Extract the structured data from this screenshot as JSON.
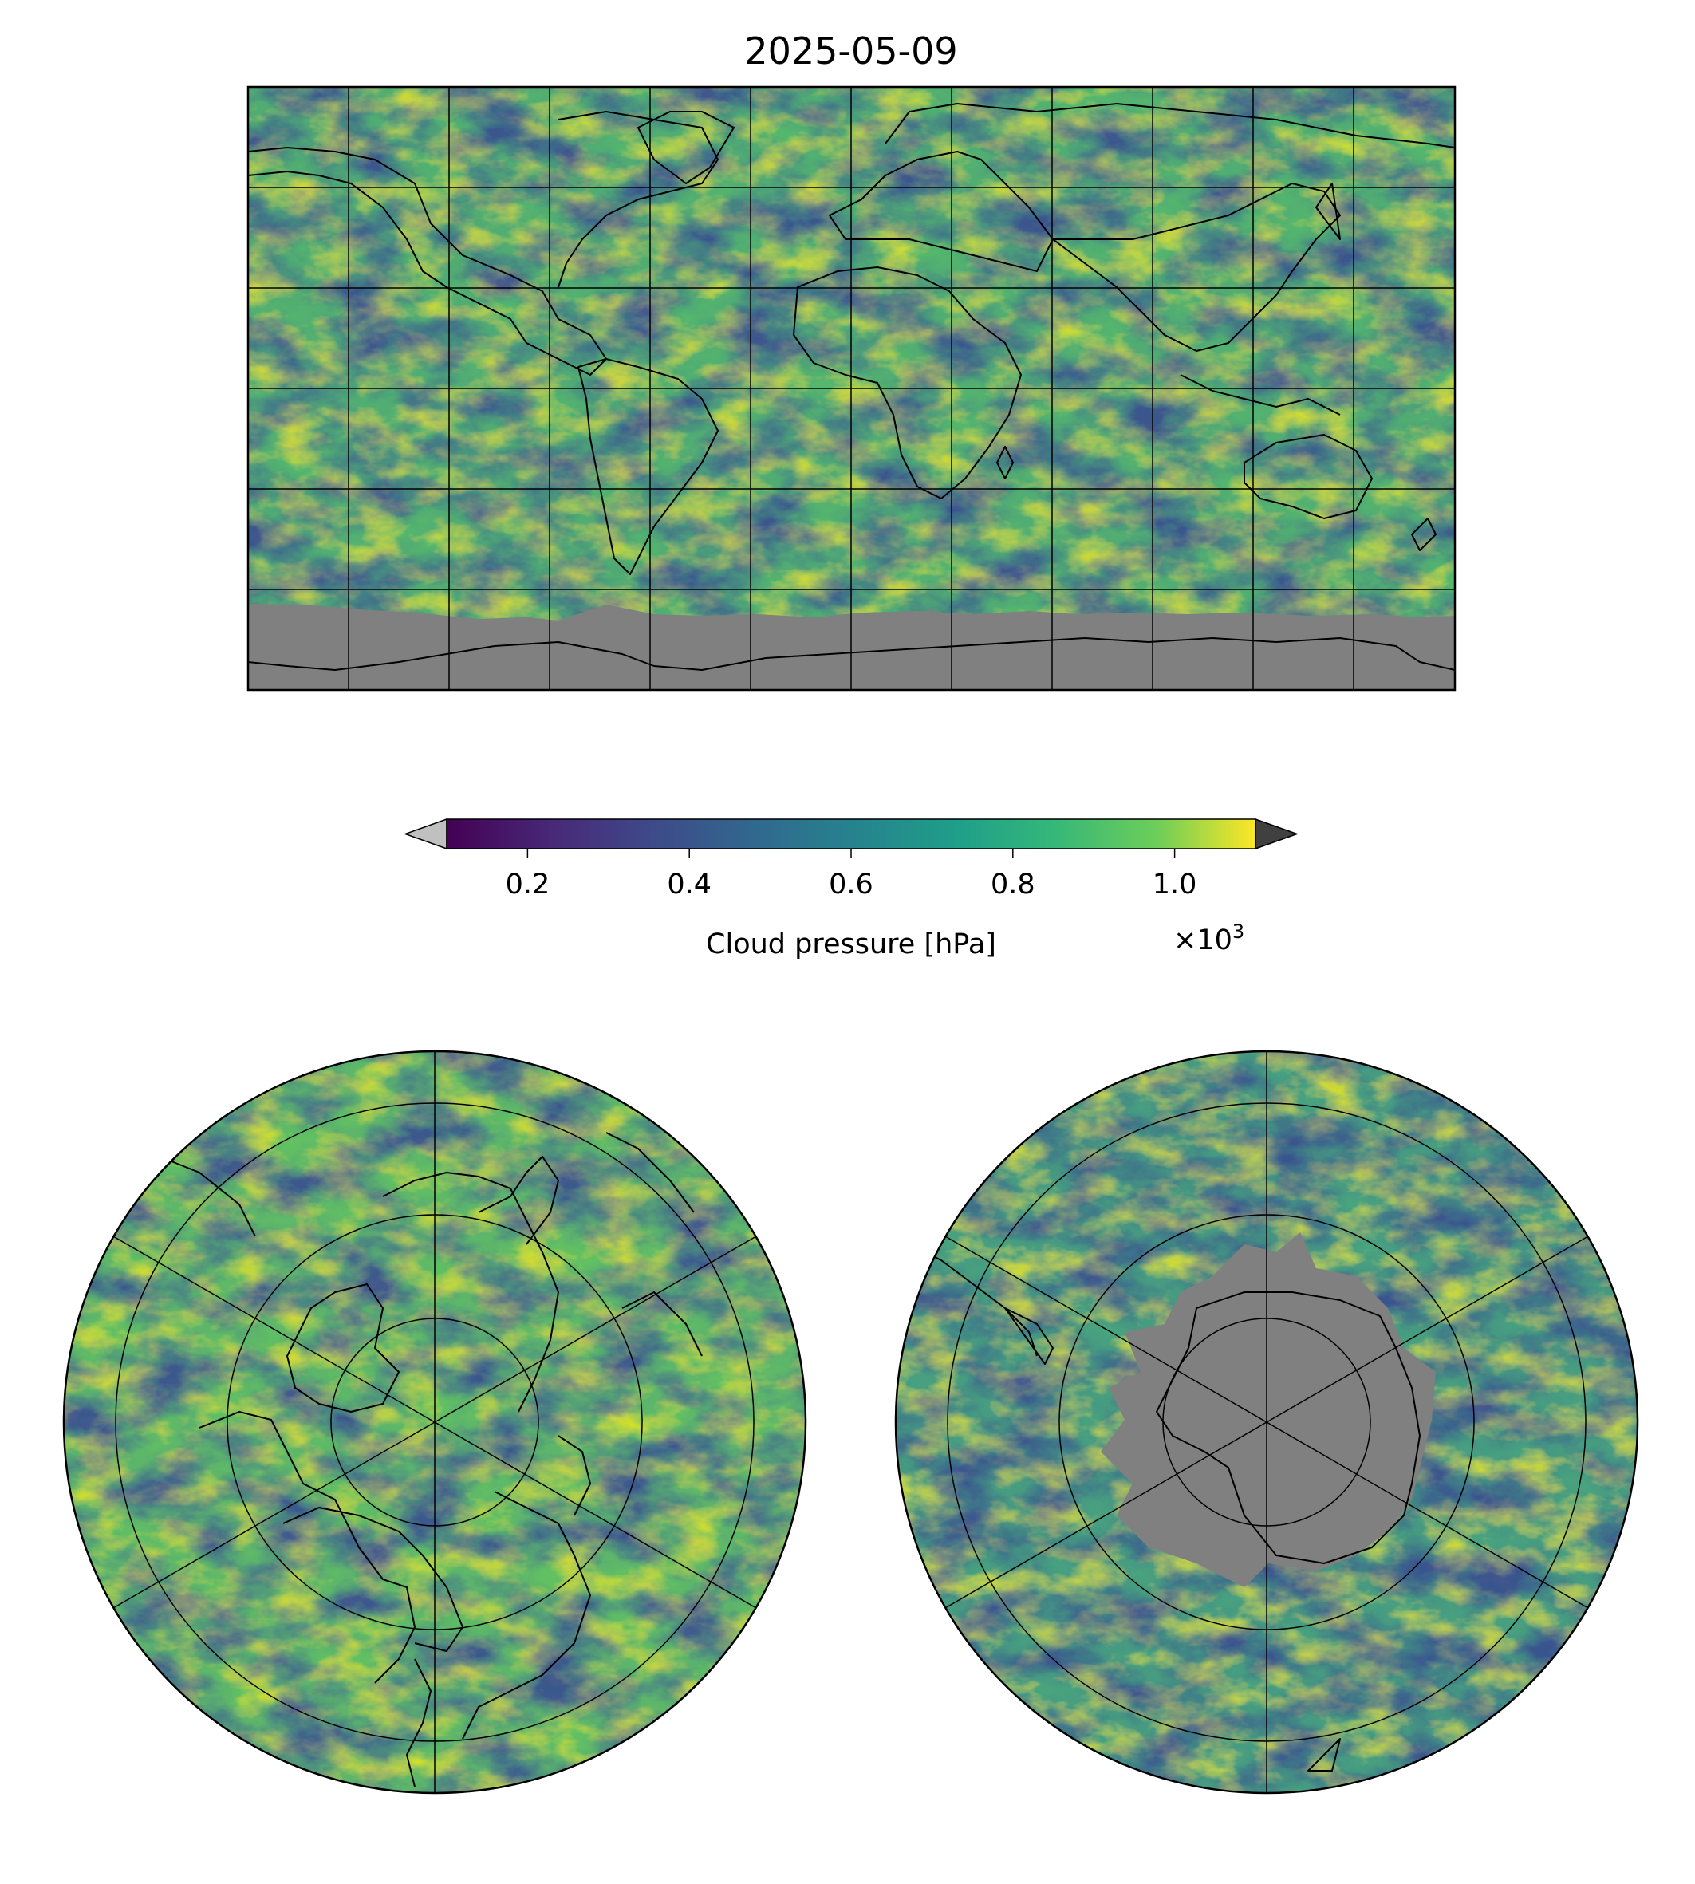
{
  "title": "2025-05-09",
  "colorbar": {
    "label": "Cloud pressure [hPa]",
    "multiplier_prefix": "×10",
    "multiplier_exp": "3",
    "vmin": 0.1,
    "vmax": 1.1,
    "ticks": [
      {
        "value": 0.2,
        "label": "0.2"
      },
      {
        "value": 0.4,
        "label": "0.4"
      },
      {
        "value": 0.6,
        "label": "0.6"
      },
      {
        "value": 0.8,
        "label": "0.8"
      },
      {
        "value": 1.0,
        "label": "1.0"
      }
    ],
    "colormap": "viridis",
    "under_color": "#c0c0c0",
    "over_color": "#404040"
  },
  "colors": {
    "missing_data": "#808080",
    "coastline": "#000000",
    "gridline": "#000000"
  },
  "maps": [
    {
      "name": "global-map",
      "projection": "equirectangular"
    },
    {
      "name": "north-polar-map",
      "projection": "north-polar-stereographic"
    },
    {
      "name": "south-polar-map",
      "projection": "south-polar-stereographic"
    }
  ]
}
